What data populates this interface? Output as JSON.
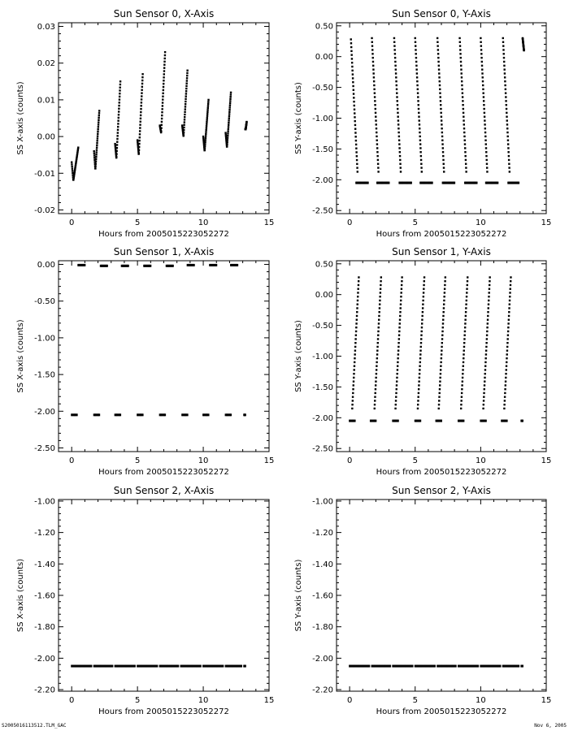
{
  "footer": {
    "left": "S2005016113512.TLM_GAC",
    "right": "Nov  6, 2005"
  },
  "chart_data": [
    {
      "type": "scatter",
      "title": "Sun Sensor 0, X-Axis",
      "xlabel": "Hours from 2005015223052272",
      "ylabel": "SS X-axis (counts)",
      "xlim": [
        -1,
        15
      ],
      "ylim": [
        -0.021,
        0.031
      ],
      "xticks": [
        0,
        5,
        10,
        15
      ],
      "yticks": [
        -0.02,
        -0.01,
        0.0,
        0.01,
        0.02,
        0.03
      ],
      "yticklabels": [
        "-0.02",
        "-0.01",
        "0.00",
        "0.01",
        "0.02",
        "0.03"
      ],
      "grid": false,
      "segments": [
        {
          "kind": "ramp",
          "x_start": 0.0,
          "x_end": 0.5,
          "y_start": -0.007,
          "y_end": -0.003,
          "y_min": -0.012
        },
        {
          "kind": "ramp",
          "x_start": 1.7,
          "x_end": 2.1,
          "y_start": -0.004,
          "y_end": 0.007,
          "y_min": -0.009
        },
        {
          "kind": "ramp",
          "x_start": 3.3,
          "x_end": 3.7,
          "y_start": -0.002,
          "y_end": 0.015,
          "y_min": -0.006
        },
        {
          "kind": "ramp",
          "x_start": 5.0,
          "x_end": 5.4,
          "y_start": -0.001,
          "y_end": 0.017,
          "y_min": -0.005
        },
        {
          "kind": "ramp",
          "x_start": 6.7,
          "x_end": 7.1,
          "y_start": 0.003,
          "y_end": 0.023,
          "y_min": 0.001
        },
        {
          "kind": "ramp",
          "x_start": 8.4,
          "x_end": 8.8,
          "y_start": 0.003,
          "y_end": 0.018,
          "y_min": 0.0
        },
        {
          "kind": "ramp",
          "x_start": 10.0,
          "x_end": 10.4,
          "y_start": 0.0,
          "y_end": 0.01,
          "y_min": -0.004
        },
        {
          "kind": "ramp",
          "x_start": 11.7,
          "x_end": 12.1,
          "y_start": 0.001,
          "y_end": 0.012,
          "y_min": -0.003
        },
        {
          "kind": "ramp",
          "x_start": 13.2,
          "x_end": 13.3,
          "y_start": 0.002,
          "y_end": 0.004,
          "y_min": 0.002
        }
      ]
    },
    {
      "type": "scatter",
      "title": "Sun Sensor 0, Y-Axis",
      "xlabel": "Hours from 2005015223052272",
      "ylabel": "SS Y-axis (counts)",
      "xlim": [
        -1,
        15
      ],
      "ylim": [
        -2.55,
        0.55
      ],
      "xticks": [
        0,
        5,
        10,
        15
      ],
      "yticks": [
        -2.5,
        -2.0,
        -1.5,
        -1.0,
        -0.5,
        0.0,
        0.5
      ],
      "yticklabels": [
        "-2.50",
        "-2.00",
        "-1.50",
        "-1.00",
        "-0.50",
        "0.00",
        "0.50"
      ],
      "grid": false,
      "segments": [
        {
          "kind": "ramp",
          "x_start": 0.1,
          "x_end": 0.6,
          "y_start": 0.28,
          "y_end": -1.87
        },
        {
          "kind": "ramp",
          "x_start": 1.7,
          "x_end": 2.2,
          "y_start": 0.3,
          "y_end": -1.87
        },
        {
          "kind": "ramp",
          "x_start": 3.4,
          "x_end": 3.9,
          "y_start": 0.3,
          "y_end": -1.87
        },
        {
          "kind": "ramp",
          "x_start": 5.0,
          "x_end": 5.5,
          "y_start": 0.3,
          "y_end": -1.87
        },
        {
          "kind": "ramp",
          "x_start": 6.7,
          "x_end": 7.2,
          "y_start": 0.3,
          "y_end": -1.87
        },
        {
          "kind": "ramp",
          "x_start": 8.4,
          "x_end": 8.9,
          "y_start": 0.3,
          "y_end": -1.87
        },
        {
          "kind": "ramp",
          "x_start": 10.0,
          "x_end": 10.5,
          "y_start": 0.3,
          "y_end": -1.87
        },
        {
          "kind": "ramp",
          "x_start": 11.7,
          "x_end": 12.2,
          "y_start": 0.3,
          "y_end": -1.87
        },
        {
          "kind": "ramp",
          "x_start": 13.2,
          "x_end": 13.3,
          "y_start": 0.3,
          "y_end": 0.1
        },
        {
          "kind": "flat",
          "y": -2.05,
          "x_start": 0.5,
          "x_end": 1.4
        },
        {
          "kind": "flat",
          "y": -2.05,
          "x_start": 2.1,
          "x_end": 3.0
        },
        {
          "kind": "flat",
          "y": -2.05,
          "x_start": 3.8,
          "x_end": 4.7
        },
        {
          "kind": "flat",
          "y": -2.05,
          "x_start": 5.4,
          "x_end": 6.3
        },
        {
          "kind": "flat",
          "y": -2.05,
          "x_start": 7.1,
          "x_end": 8.0
        },
        {
          "kind": "flat",
          "y": -2.05,
          "x_start": 8.8,
          "x_end": 9.7
        },
        {
          "kind": "flat",
          "y": -2.05,
          "x_start": 10.4,
          "x_end": 11.3
        },
        {
          "kind": "flat",
          "y": -2.05,
          "x_start": 12.1,
          "x_end": 12.9
        }
      ]
    },
    {
      "type": "scatter",
      "title": "Sun Sensor 1, X-Axis",
      "xlabel": "Hours from 2005015223052272",
      "ylabel": "SS X-axis (counts)",
      "xlim": [
        -1,
        15
      ],
      "ylim": [
        -2.55,
        0.05
      ],
      "xticks": [
        0,
        5,
        10,
        15
      ],
      "yticks": [
        -2.5,
        -2.0,
        -1.5,
        -1.0,
        -0.5,
        0.0
      ],
      "yticklabels": [
        "-2.50",
        "-2.00",
        "-1.50",
        "-1.00",
        "-0.50",
        "0.00"
      ],
      "grid": false,
      "segments": [
        {
          "kind": "flat",
          "y": -2.05,
          "x_start": 0.0,
          "x_end": 0.4
        },
        {
          "kind": "flat",
          "y": -2.05,
          "x_start": 1.7,
          "x_end": 2.1
        },
        {
          "kind": "flat",
          "y": -2.05,
          "x_start": 3.3,
          "x_end": 3.7
        },
        {
          "kind": "flat",
          "y": -2.05,
          "x_start": 5.0,
          "x_end": 5.4
        },
        {
          "kind": "flat",
          "y": -2.05,
          "x_start": 6.7,
          "x_end": 7.1
        },
        {
          "kind": "flat",
          "y": -2.05,
          "x_start": 8.4,
          "x_end": 8.8
        },
        {
          "kind": "flat",
          "y": -2.05,
          "x_start": 10.0,
          "x_end": 10.4
        },
        {
          "kind": "flat",
          "y": -2.05,
          "x_start": 11.7,
          "x_end": 12.1
        },
        {
          "kind": "flat",
          "y": -2.05,
          "x_start": 13.1,
          "x_end": 13.2
        },
        {
          "kind": "flat",
          "y": -0.01,
          "x_start": 0.5,
          "x_end": 1.0
        },
        {
          "kind": "flat",
          "y": -0.02,
          "x_start": 2.2,
          "x_end": 2.7
        },
        {
          "kind": "flat",
          "y": -0.02,
          "x_start": 3.8,
          "x_end": 4.3
        },
        {
          "kind": "flat",
          "y": -0.02,
          "x_start": 5.5,
          "x_end": 6.0
        },
        {
          "kind": "flat",
          "y": -0.02,
          "x_start": 7.2,
          "x_end": 7.7
        },
        {
          "kind": "flat",
          "y": -0.01,
          "x_start": 8.8,
          "x_end": 9.3
        },
        {
          "kind": "flat",
          "y": -0.01,
          "x_start": 10.5,
          "x_end": 11.0
        },
        {
          "kind": "flat",
          "y": -0.01,
          "x_start": 12.1,
          "x_end": 12.6
        }
      ]
    },
    {
      "type": "scatter",
      "title": "Sun Sensor 1, Y-Axis",
      "xlabel": "Hours from 2005015223052272",
      "ylabel": "SS Y-axis (counts)",
      "xlim": [
        -1,
        15
      ],
      "ylim": [
        -2.55,
        0.55
      ],
      "xticks": [
        0,
        5,
        10,
        15
      ],
      "yticks": [
        -2.5,
        -2.0,
        -1.5,
        -1.0,
        -0.5,
        0.0,
        0.5
      ],
      "yticklabels": [
        "-2.50",
        "-2.00",
        "-1.50",
        "-1.00",
        "-0.50",
        "0.00",
        "0.50"
      ],
      "grid": false,
      "segments": [
        {
          "kind": "ramp",
          "x_start": 0.2,
          "x_end": 0.7,
          "y_start": -1.85,
          "y_end": 0.28
        },
        {
          "kind": "ramp",
          "x_start": 1.9,
          "x_end": 2.4,
          "y_start": -1.85,
          "y_end": 0.28
        },
        {
          "kind": "ramp",
          "x_start": 3.5,
          "x_end": 4.0,
          "y_start": -1.85,
          "y_end": 0.28
        },
        {
          "kind": "ramp",
          "x_start": 5.2,
          "x_end": 5.7,
          "y_start": -1.85,
          "y_end": 0.28
        },
        {
          "kind": "ramp",
          "x_start": 6.8,
          "x_end": 7.3,
          "y_start": -1.85,
          "y_end": 0.28
        },
        {
          "kind": "ramp",
          "x_start": 8.5,
          "x_end": 9.0,
          "y_start": -1.85,
          "y_end": 0.28
        },
        {
          "kind": "ramp",
          "x_start": 10.2,
          "x_end": 10.7,
          "y_start": -1.85,
          "y_end": 0.28
        },
        {
          "kind": "ramp",
          "x_start": 11.8,
          "x_end": 12.3,
          "y_start": -1.85,
          "y_end": 0.28
        },
        {
          "kind": "flat",
          "y": -2.05,
          "x_start": 0.0,
          "x_end": 0.4
        },
        {
          "kind": "flat",
          "y": -2.05,
          "x_start": 1.6,
          "x_end": 2.0
        },
        {
          "kind": "flat",
          "y": -2.05,
          "x_start": 3.3,
          "x_end": 3.7
        },
        {
          "kind": "flat",
          "y": -2.05,
          "x_start": 5.0,
          "x_end": 5.4
        },
        {
          "kind": "flat",
          "y": -2.05,
          "x_start": 6.6,
          "x_end": 7.0
        },
        {
          "kind": "flat",
          "y": -2.05,
          "x_start": 8.3,
          "x_end": 8.7
        },
        {
          "kind": "flat",
          "y": -2.05,
          "x_start": 10.0,
          "x_end": 10.4
        },
        {
          "kind": "flat",
          "y": -2.05,
          "x_start": 11.6,
          "x_end": 12.0
        },
        {
          "kind": "flat",
          "y": -2.05,
          "x_start": 13.1,
          "x_end": 13.2
        }
      ]
    },
    {
      "type": "scatter",
      "title": "Sun Sensor 2, X-Axis",
      "xlabel": "Hours from 2005015223052272",
      "ylabel": "SS X-axis (counts)",
      "xlim": [
        -1,
        15
      ],
      "ylim": [
        -2.21,
        -0.99
      ],
      "xticks": [
        0,
        5,
        10,
        15
      ],
      "yticks": [
        -2.2,
        -2.0,
        -1.8,
        -1.6,
        -1.4,
        -1.2,
        -1.0
      ],
      "yticklabels": [
        "-2.20",
        "-2.00",
        "-1.80",
        "-1.60",
        "-1.40",
        "-1.20",
        "-1.00"
      ],
      "grid": false,
      "segments": [
        {
          "kind": "flat",
          "y": -2.05,
          "x_start": 0.0,
          "x_end": 1.5
        },
        {
          "kind": "flat",
          "y": -2.05,
          "x_start": 1.7,
          "x_end": 3.1
        },
        {
          "kind": "flat",
          "y": -2.05,
          "x_start": 3.3,
          "x_end": 4.8
        },
        {
          "kind": "flat",
          "y": -2.05,
          "x_start": 5.0,
          "x_end": 6.5
        },
        {
          "kind": "flat",
          "y": -2.05,
          "x_start": 6.7,
          "x_end": 8.1
        },
        {
          "kind": "flat",
          "y": -2.05,
          "x_start": 8.3,
          "x_end": 9.8
        },
        {
          "kind": "flat",
          "y": -2.05,
          "x_start": 10.0,
          "x_end": 11.5
        },
        {
          "kind": "flat",
          "y": -2.05,
          "x_start": 11.7,
          "x_end": 12.9
        },
        {
          "kind": "flat",
          "y": -2.05,
          "x_start": 13.1,
          "x_end": 13.2
        }
      ]
    },
    {
      "type": "scatter",
      "title": "Sun Sensor 2, Y-Axis",
      "xlabel": "Hours from 2005015223052272",
      "ylabel": "SS Y-axis (counts)",
      "xlim": [
        -1,
        15
      ],
      "ylim": [
        -2.21,
        -0.99
      ],
      "xticks": [
        0,
        5,
        10,
        15
      ],
      "yticks": [
        -2.2,
        -2.0,
        -1.8,
        -1.6,
        -1.4,
        -1.2,
        -1.0
      ],
      "yticklabels": [
        "-2.20",
        "-2.00",
        "-1.80",
        "-1.60",
        "-1.40",
        "-1.20",
        "-1.00"
      ],
      "grid": false,
      "segments": [
        {
          "kind": "flat",
          "y": -2.05,
          "x_start": 0.0,
          "x_end": 1.5
        },
        {
          "kind": "flat",
          "y": -2.05,
          "x_start": 1.7,
          "x_end": 3.1
        },
        {
          "kind": "flat",
          "y": -2.05,
          "x_start": 3.3,
          "x_end": 4.8
        },
        {
          "kind": "flat",
          "y": -2.05,
          "x_start": 5.0,
          "x_end": 6.5
        },
        {
          "kind": "flat",
          "y": -2.05,
          "x_start": 6.7,
          "x_end": 8.1
        },
        {
          "kind": "flat",
          "y": -2.05,
          "x_start": 8.3,
          "x_end": 9.8
        },
        {
          "kind": "flat",
          "y": -2.05,
          "x_start": 10.0,
          "x_end": 11.5
        },
        {
          "kind": "flat",
          "y": -2.05,
          "x_start": 11.7,
          "x_end": 12.9
        },
        {
          "kind": "flat",
          "y": -2.05,
          "x_start": 13.1,
          "x_end": 13.2
        }
      ]
    }
  ]
}
